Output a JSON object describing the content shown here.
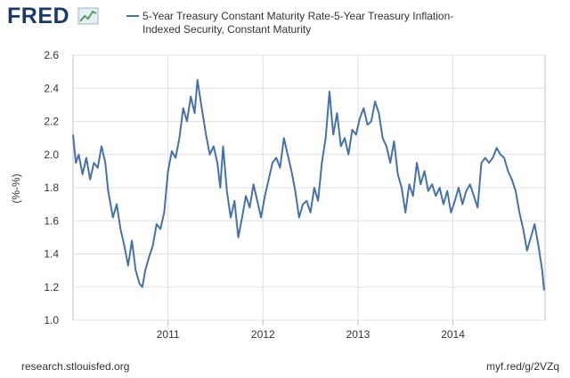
{
  "logo": "FRED",
  "footer": {
    "source": "research.stlouisfed.org",
    "link": "myf.red/g/2VZq"
  },
  "chart_data": {
    "type": "line",
    "ylabel": "(%-%)",
    "xlim": [
      2010.0,
      2014.97
    ],
    "xticks": [
      2011,
      2012,
      2013,
      2014
    ],
    "ylim": [
      1.0,
      2.6
    ],
    "yticks": [
      {
        "value": 1,
        "label": "1.0"
      },
      1.2,
      1.4,
      1.6,
      1.8,
      {
        "value": 2,
        "label": "2.0"
      },
      2.2,
      2.4,
      2.6
    ],
    "grid": true,
    "series": [
      {
        "name": "5-Year Treasury Constant Maturity Rate-5-Year Treasury Inflation-Indexed Security, Constant Maturity",
        "color": "#4572a7",
        "x": [
          2010.0,
          2010.03,
          2010.06,
          2010.1,
          2010.14,
          2010.18,
          2010.22,
          2010.26,
          2010.3,
          2010.34,
          2010.37,
          2010.42,
          2010.46,
          2010.5,
          2010.54,
          2010.58,
          2010.62,
          2010.66,
          2010.7,
          2010.73,
          2010.76,
          2010.8,
          2010.84,
          2010.88,
          2010.92,
          2010.96,
          2011.0,
          2011.04,
          2011.08,
          2011.12,
          2011.16,
          2011.2,
          2011.24,
          2011.28,
          2011.31,
          2011.35,
          2011.4,
          2011.44,
          2011.48,
          2011.52,
          2011.55,
          2011.58,
          2011.62,
          2011.66,
          2011.7,
          2011.74,
          2011.78,
          2011.82,
          2011.86,
          2011.9,
          2011.94,
          2011.98,
          2012.02,
          2012.06,
          2012.1,
          2012.14,
          2012.18,
          2012.22,
          2012.26,
          2012.3,
          2012.34,
          2012.38,
          2012.42,
          2012.46,
          2012.5,
          2012.54,
          2012.58,
          2012.62,
          2012.66,
          2012.7,
          2012.74,
          2012.78,
          2012.82,
          2012.86,
          2012.9,
          2012.94,
          2012.98,
          2013.02,
          2013.06,
          2013.1,
          2013.14,
          2013.18,
          2013.22,
          2013.26,
          2013.3,
          2013.34,
          2013.38,
          2013.42,
          2013.46,
          2013.5,
          2013.54,
          2013.58,
          2013.62,
          2013.66,
          2013.7,
          2013.74,
          2013.78,
          2013.82,
          2013.86,
          2013.9,
          2013.94,
          2013.98,
          2014.02,
          2014.06,
          2014.1,
          2014.14,
          2014.18,
          2014.22,
          2014.26,
          2014.3,
          2014.34,
          2014.38,
          2014.42,
          2014.46,
          2014.5,
          2014.54,
          2014.58,
          2014.62,
          2014.66,
          2014.7,
          2014.74,
          2014.78,
          2014.82,
          2014.86,
          2014.9,
          2014.94,
          2014.96
        ],
        "values": [
          2.12,
          1.95,
          2.0,
          1.88,
          1.98,
          1.85,
          1.95,
          1.92,
          2.05,
          1.95,
          1.78,
          1.62,
          1.7,
          1.55,
          1.45,
          1.33,
          1.48,
          1.3,
          1.22,
          1.2,
          1.3,
          1.38,
          1.45,
          1.58,
          1.55,
          1.65,
          1.9,
          2.02,
          1.98,
          2.1,
          2.28,
          2.2,
          2.35,
          2.25,
          2.45,
          2.3,
          2.12,
          2.0,
          2.05,
          1.95,
          1.8,
          2.05,
          1.78,
          1.62,
          1.72,
          1.5,
          1.62,
          1.75,
          1.68,
          1.82,
          1.72,
          1.62,
          1.75,
          1.85,
          1.95,
          1.98,
          1.92,
          2.1,
          2.0,
          1.9,
          1.78,
          1.62,
          1.7,
          1.72,
          1.65,
          1.8,
          1.72,
          1.95,
          2.1,
          2.38,
          2.12,
          2.25,
          2.05,
          2.1,
          2.0,
          2.15,
          2.12,
          2.22,
          2.28,
          2.18,
          2.2,
          2.32,
          2.25,
          2.1,
          2.05,
          1.95,
          2.08,
          1.88,
          1.8,
          1.65,
          1.82,
          1.75,
          1.95,
          1.82,
          1.9,
          1.78,
          1.82,
          1.75,
          1.8,
          1.7,
          1.78,
          1.65,
          1.72,
          1.8,
          1.7,
          1.78,
          1.82,
          1.75,
          1.68,
          1.95,
          1.98,
          1.95,
          1.98,
          2.04,
          2.0,
          1.98,
          1.9,
          1.85,
          1.78,
          1.65,
          1.55,
          1.42,
          1.5,
          1.58,
          1.45,
          1.3,
          1.18
        ]
      }
    ]
  }
}
